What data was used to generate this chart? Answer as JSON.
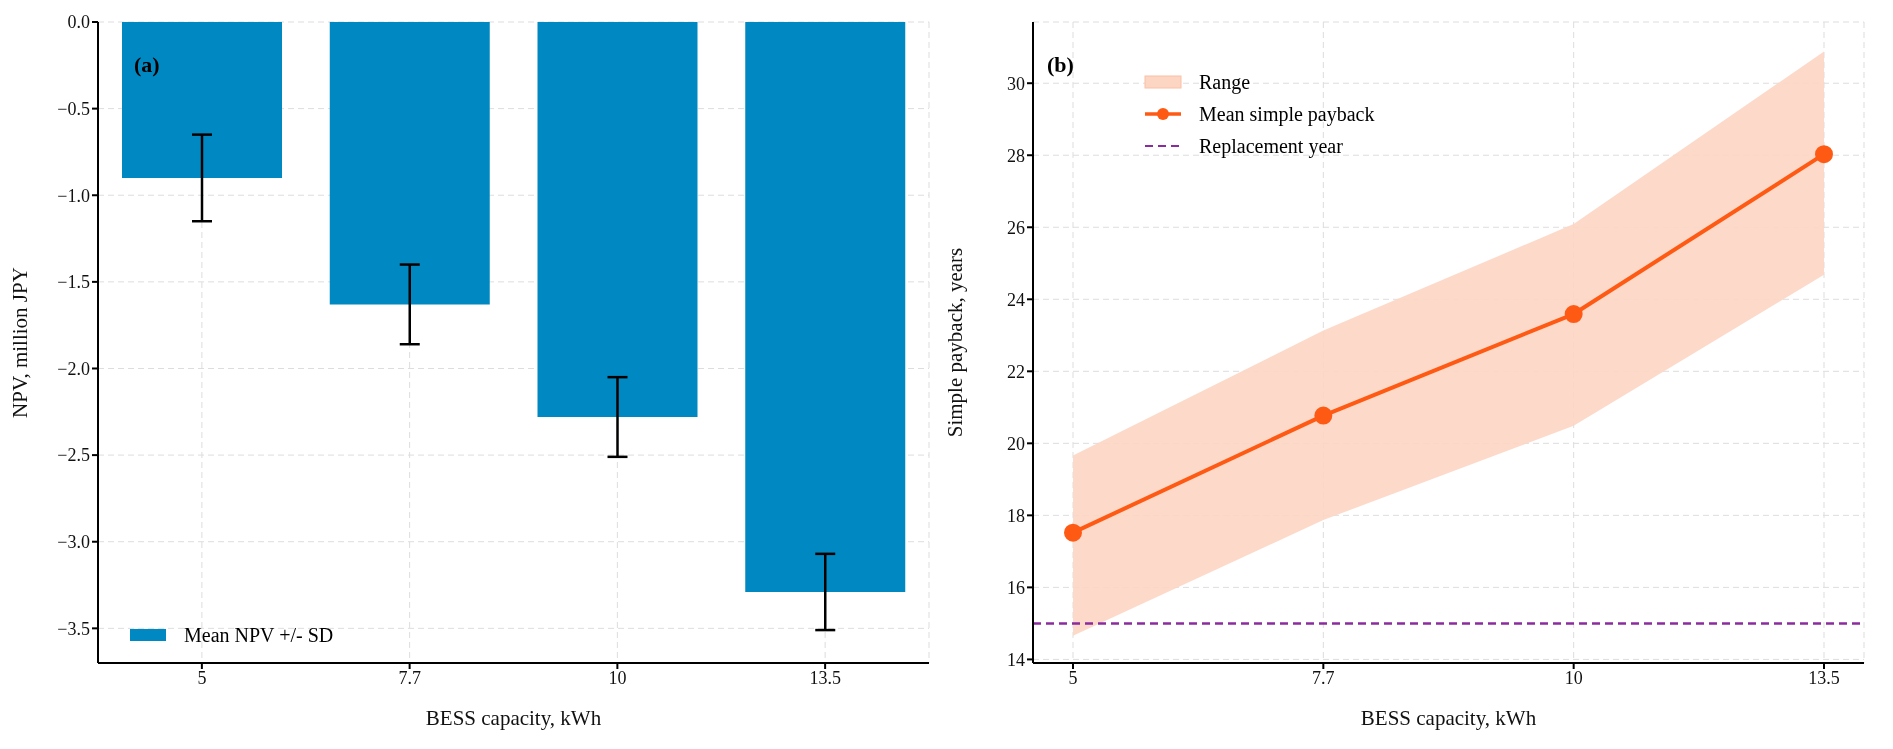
{
  "chart_data": [
    {
      "type": "bar",
      "xlabel": "BESS capacity, kWh",
      "ylabel": "NPV, million JPY",
      "categories": [
        "5",
        "7.7",
        "10",
        "13.5"
      ],
      "series": [
        {
          "name": "Mean NPV +/- SD",
          "color": "#0088c2",
          "values": [
            -0.9,
            -1.63,
            -2.28,
            -3.29
          ],
          "errors": [
            0.25,
            0.23,
            0.23,
            0.22
          ]
        }
      ],
      "ylim": [
        -3.7,
        0
      ],
      "yticks": [
        {
          "value": 0,
          "label": "0.0"
        },
        {
          "value": -0.5,
          "label": "−0.5"
        },
        {
          "value": -1,
          "label": "−1.0"
        },
        {
          "value": -1.5,
          "label": "−1.5"
        },
        {
          "value": -2,
          "label": "−2.0"
        },
        {
          "value": -2.5,
          "label": "−2.5"
        },
        {
          "value": -3,
          "label": "−3.0"
        },
        {
          "value": -3.5,
          "label": "−3.5"
        }
      ],
      "grid": true,
      "legend": "bottom left",
      "annotations": [
        "(a)"
      ]
    },
    {
      "type": "line",
      "xlabel": "BESS capacity, kWh",
      "ylabel": "Simple payback, years",
      "categories": [
        "5",
        "7.7",
        "10",
        "13.5"
      ],
      "series": [
        {
          "name": "Range",
          "type": "area",
          "color": "#fdd5c3",
          "values": [
            null,
            null,
            null,
            null
          ],
          "lower": [
            14.66,
            17.87,
            20.49,
            24.68
          ],
          "upper": [
            19.66,
            23.13,
            26.09,
            30.88
          ]
        },
        {
          "name": "Mean simple payback",
          "color": "#ff5a14",
          "marker": "circle",
          "values": [
            17.52,
            20.77,
            23.59,
            28.03
          ]
        }
      ],
      "ref_lines": [
        {
          "axis": "y",
          "value": 15,
          "label": "Replacement year",
          "color": "#8b2c9e",
          "line_style": "dashed"
        }
      ],
      "ylim": [
        13.9,
        31.7
      ],
      "yticks": [
        14,
        16,
        18,
        20,
        22,
        24,
        26,
        28,
        30
      ],
      "grid": true,
      "legend": "top left",
      "annotations": [
        "(b)"
      ]
    }
  ]
}
